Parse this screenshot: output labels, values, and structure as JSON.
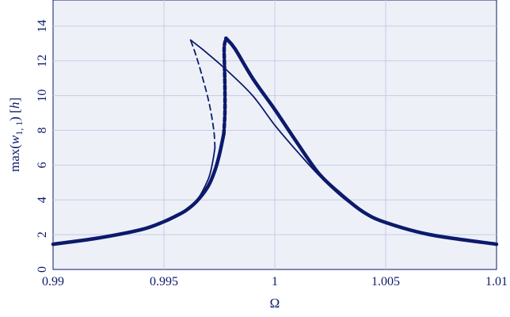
{
  "chart_data": {
    "type": "line",
    "title": "",
    "xlabel": "Ω",
    "ylabel": "max(w1,1) [h]",
    "ylabel_parts": {
      "pre": "max(",
      "var": "w",
      "sub": "1, 1",
      "post": ") [",
      "unit": "h",
      "end": "]"
    },
    "xlim": [
      0.99,
      1.01
    ],
    "ylim": [
      0,
      15.5
    ],
    "xticks": [
      0.99,
      0.995,
      1,
      1.005,
      1.01
    ],
    "xtick_labels": [
      "0.99",
      "0.995",
      "1",
      "1.005",
      "1.01"
    ],
    "yticks": [
      0,
      2,
      4,
      6,
      8,
      10,
      12,
      14
    ],
    "ytick_labels": [
      "0",
      "2",
      "4",
      "6",
      "8",
      "10",
      "12",
      "14"
    ],
    "grid": true,
    "colors": {
      "line": "#0b1a6b",
      "background": "#eef0f8",
      "grid": "#c5cce4"
    },
    "series": [
      {
        "style": "thin-stable",
        "points": [
          [
            0.99,
            1.45
          ],
          [
            0.992,
            1.8
          ],
          [
            0.994,
            2.3
          ],
          [
            0.995,
            2.75
          ],
          [
            0.9955,
            3.05
          ],
          [
            0.996,
            3.45
          ],
          [
            0.9965,
            4.0
          ],
          [
            0.997,
            5.2
          ],
          [
            0.9972,
            6.2
          ],
          [
            0.9973,
            7.0
          ]
        ]
      },
      {
        "style": "thin-unstable",
        "points": [
          [
            0.9973,
            7.0
          ],
          [
            0.99725,
            8.0
          ],
          [
            0.99705,
            9.5
          ],
          [
            0.99675,
            11.0
          ],
          [
            0.99645,
            12.3
          ],
          [
            0.9962,
            13.2
          ]
        ]
      },
      {
        "style": "thin-stable",
        "points": [
          [
            0.9962,
            13.2
          ],
          [
            0.9968,
            12.6
          ],
          [
            0.9978,
            11.5
          ],
          [
            0.999,
            10.0
          ],
          [
            1.0,
            8.3
          ],
          [
            1.001,
            6.8
          ],
          [
            1.002,
            5.4
          ],
          [
            1.003,
            4.2
          ],
          [
            1.004,
            3.3
          ],
          [
            1.005,
            2.7
          ],
          [
            1.007,
            2.0
          ],
          [
            1.01,
            1.45
          ]
        ]
      },
      {
        "style": "thick-stable",
        "points": [
          [
            0.99,
            1.45
          ],
          [
            0.992,
            1.8
          ],
          [
            0.994,
            2.3
          ],
          [
            0.995,
            2.75
          ],
          [
            0.9955,
            3.05
          ],
          [
            0.996,
            3.4
          ],
          [
            0.9965,
            3.95
          ],
          [
            0.997,
            4.8
          ],
          [
            0.9973,
            5.7
          ],
          [
            0.9975,
            6.6
          ],
          [
            0.9977,
            7.8
          ]
        ]
      },
      {
        "style": "thick-unstable",
        "points": [
          [
            0.9977,
            7.8
          ],
          [
            0.99775,
            9.0
          ],
          [
            0.99775,
            10.5
          ],
          [
            0.99773,
            11.8
          ],
          [
            0.99772,
            12.8
          ],
          [
            0.9978,
            13.3
          ]
        ]
      },
      {
        "style": "thick-stable",
        "points": [
          [
            0.9978,
            13.3
          ],
          [
            0.9982,
            12.7
          ],
          [
            0.999,
            11.0
          ],
          [
            1.0,
            9.2
          ],
          [
            1.001,
            7.3
          ],
          [
            1.002,
            5.5
          ],
          [
            1.003,
            4.3
          ],
          [
            1.004,
            3.3
          ],
          [
            1.005,
            2.7
          ],
          [
            1.007,
            2.0
          ],
          [
            1.01,
            1.45
          ]
        ]
      }
    ]
  }
}
